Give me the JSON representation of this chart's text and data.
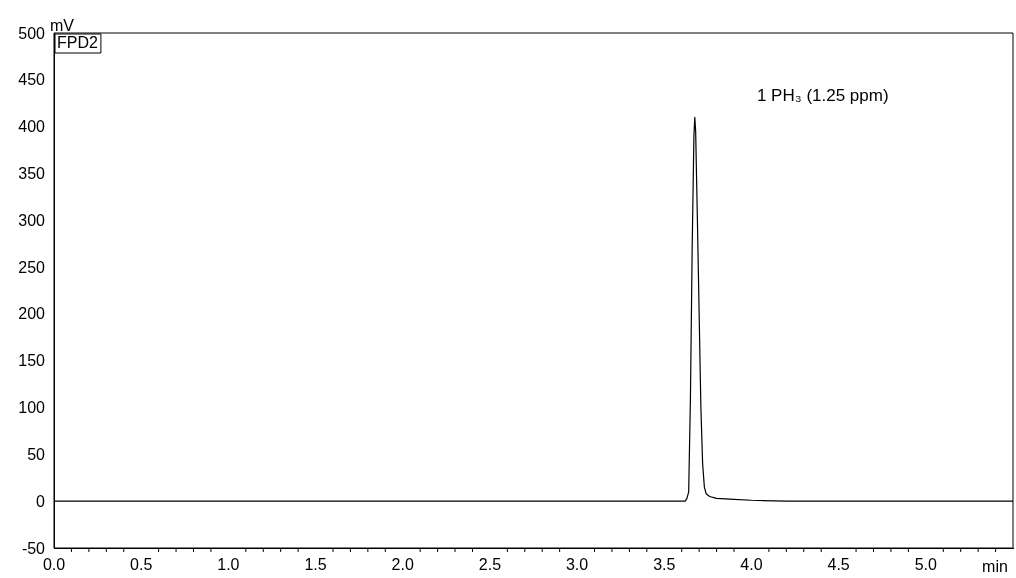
{
  "chart_data": {
    "type": "line",
    "xlabel": "min",
    "ylabel": "mV",
    "annotations": [
      "FPD2",
      "1 PH₃ (1.25 ppm)"
    ],
    "x": [
      0,
      0.5,
      1.0,
      1.5,
      2.0,
      2.5,
      3.0,
      3.5,
      3.6,
      3.62,
      3.63,
      3.64,
      3.65,
      3.66,
      3.67,
      3.675,
      3.68,
      3.69,
      3.7,
      3.71,
      3.72,
      3.73,
      3.74,
      3.76,
      3.8,
      3.9,
      4.0,
      4.2,
      4.5,
      5.0,
      5.5
    ],
    "series": [
      {
        "color": "#000000",
        "values": [
          0,
          0,
          0,
          0,
          0,
          0,
          0,
          0,
          0,
          0,
          3,
          10,
          110,
          270,
          390,
          410,
          395,
          300,
          200,
          100,
          40,
          15,
          8,
          5,
          3,
          2,
          1,
          0,
          0,
          0,
          0
        ]
      }
    ],
    "xlim": [
      0,
      5.5
    ],
    "ylim": [
      -50,
      500
    ],
    "xticks": [
      {
        "value": 0,
        "label": "0.0"
      },
      {
        "value": 0.5,
        "label": "0.5"
      },
      {
        "value": 1,
        "label": "1.0"
      },
      {
        "value": 1.5,
        "label": "1.5"
      },
      {
        "value": 2,
        "label": "2.0"
      },
      {
        "value": 2.5,
        "label": "2.5"
      },
      {
        "value": 3,
        "label": "3.0"
      },
      {
        "value": 3.5,
        "label": "3.5"
      },
      {
        "value": 4,
        "label": "4.0"
      },
      {
        "value": 4.5,
        "label": "4.5"
      },
      {
        "value": 5,
        "label": "5.0"
      },
      {
        "value": 5.5,
        "label": null
      }
    ],
    "yticks": [
      -50,
      0,
      50,
      100,
      150,
      200,
      250,
      300,
      350,
      400,
      450,
      500
    ],
    "grid": false,
    "legend": false,
    "marker": "none",
    "line_style": "solid"
  }
}
